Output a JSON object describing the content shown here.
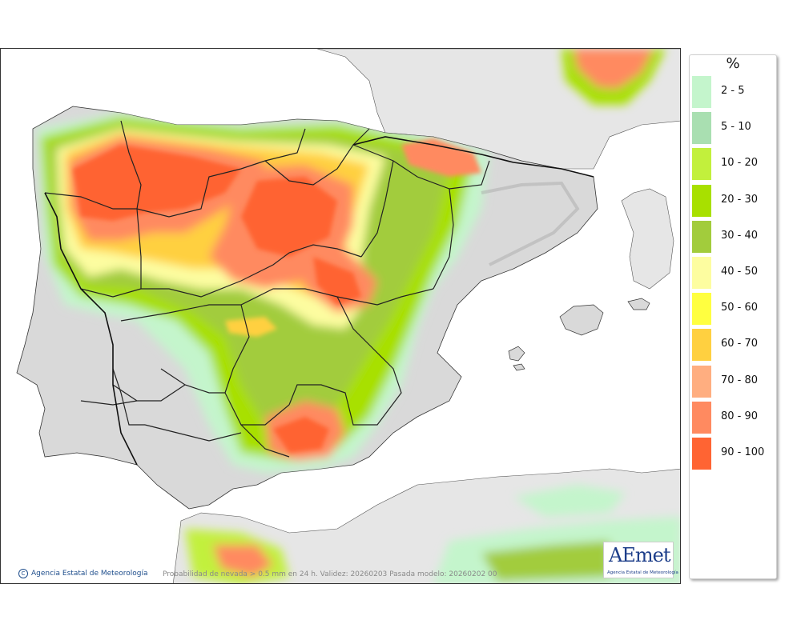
{
  "legend": {
    "title": "%",
    "items": [
      {
        "label": "2 - 5",
        "color": "#c4f5cc"
      },
      {
        "label": "5 - 10",
        "color": "#a9dfb1"
      },
      {
        "label": "10 - 20",
        "color": "#c2f03c"
      },
      {
        "label": "20 - 30",
        "color": "#a8e000"
      },
      {
        "label": "30 - 40",
        "color": "#a2cc3c"
      },
      {
        "label": "40 - 50",
        "color": "#fdfda0"
      },
      {
        "label": "50 - 60",
        "color": "#ffff40"
      },
      {
        "label": "60 - 70",
        "color": "#ffd040"
      },
      {
        "label": "70 - 80",
        "color": "#ffae80"
      },
      {
        "label": "80 - 90",
        "color": "#ff8a60"
      },
      {
        "label": "90 - 100",
        "color": "#ff6433"
      }
    ]
  },
  "footer": {
    "credit": "Agencia Estatal de Meteorología",
    "caption": "Probabilidad de nevada > 0.5 mm en 24 h. Validez: 20260203 Pasada modelo: 20260202 00"
  },
  "logo": {
    "word": "AEmet",
    "subtitle": "Agencia Estatal de Meteorología"
  },
  "map": {
    "sea_color": "#ffffff",
    "land_color": "#d9d9d9",
    "neighbor_land_color": "#e6e6e6",
    "border_color": "#222222"
  }
}
